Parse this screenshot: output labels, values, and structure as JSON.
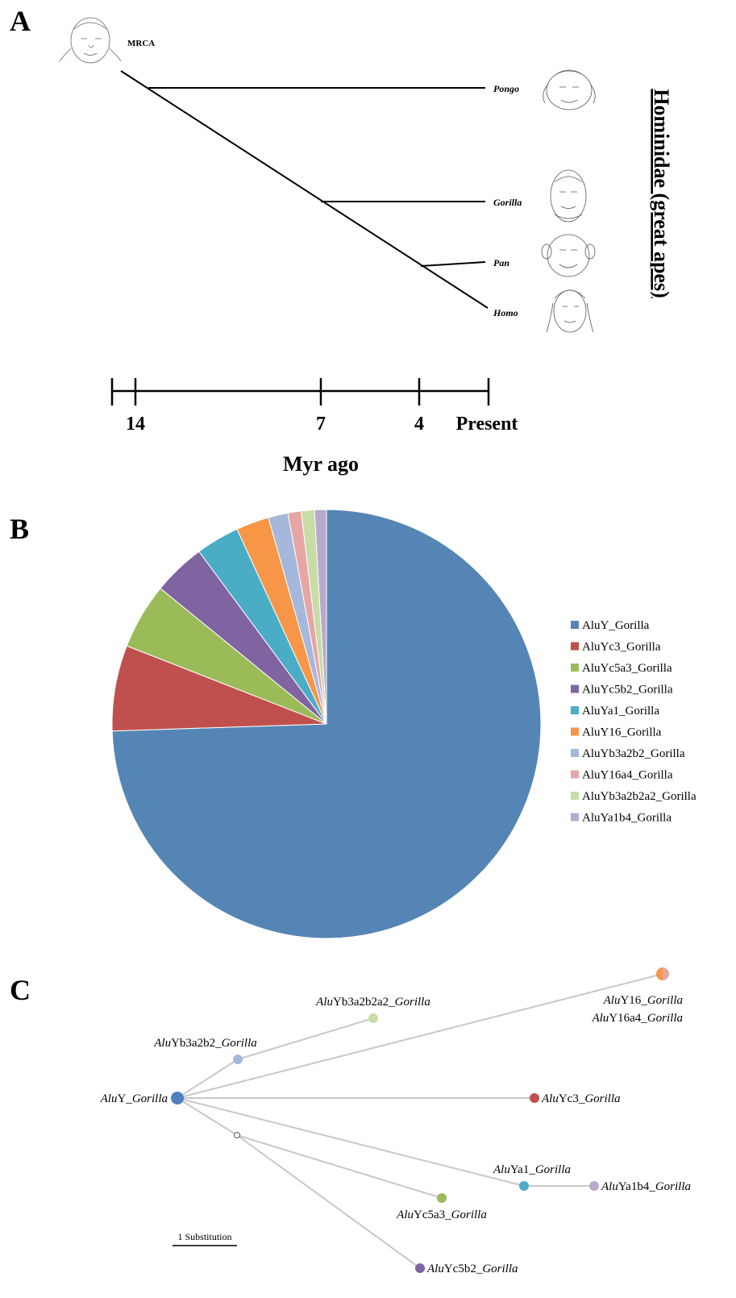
{
  "panelA": {
    "letter": "A",
    "mrca_label": "MRCA",
    "taxa": [
      "Pongo",
      "Gorilla",
      "Pan",
      "Homo"
    ],
    "family_label": "Hominidae (great apes)",
    "time_axis": {
      "ticks": [
        "14",
        "7",
        "4",
        "Present"
      ],
      "title": "Myr ago"
    },
    "icons": [
      "ancestor-portrait-icon",
      "orangutan-icon",
      "gorilla-icon",
      "chimpanzee-icon",
      "human-icon"
    ]
  },
  "panelB": {
    "letter": "B",
    "chart_data": {
      "type": "pie",
      "slices": [
        {
          "name": "AluY_Gorilla",
          "value": 75.0,
          "color": "#5585b5"
        },
        {
          "name": "AluYc3_Gorilla",
          "value": 6.5,
          "color": "#c0504d"
        },
        {
          "name": "AluYc5a3_Gorilla",
          "value": 5.0,
          "color": "#9bbb59"
        },
        {
          "name": "AluYc5b2_Gorilla",
          "value": 4.0,
          "color": "#8064a2"
        },
        {
          "name": "AluYa1_Gorilla",
          "value": 3.3,
          "color": "#4bacc6"
        },
        {
          "name": "AluY16_Gorilla",
          "value": 2.5,
          "color": "#f79646"
        },
        {
          "name": "AluYb3a2b2_Gorilla",
          "value": 1.5,
          "color": "#a5b8dc"
        },
        {
          "name": "AluY16a4_Gorilla",
          "value": 1.0,
          "color": "#e6a6a4"
        },
        {
          "name": "AluYb3a2b2a2_Gorilla",
          "value": 1.0,
          "color": "#c7dca6"
        },
        {
          "name": "AluYa1b4_Gorilla",
          "value": 0.9,
          "color": "#b8a9cc"
        }
      ],
      "legend_position": "right"
    }
  },
  "panelC": {
    "letter": "C",
    "nodes": [
      {
        "prefix": "Alu",
        "rest": "Y_",
        "genus": "Gorilla",
        "color": "#4f81bd"
      },
      {
        "prefix": "Alu",
        "rest": "Yb3a2b2_",
        "genus": "Gorilla",
        "color": "#a5b8dc"
      },
      {
        "prefix": "Alu",
        "rest": "Yb3a2b2a2_",
        "genus": "Gorilla",
        "color": "#c7dca6"
      },
      {
        "prefix": "Alu",
        "rest": "Y16_",
        "genus": "Gorilla",
        "color": "#f79646"
      },
      {
        "prefix": "Alu",
        "rest": "Y16a4_",
        "genus": "Gorilla",
        "color": "#e6a6a4"
      },
      {
        "prefix": "Alu",
        "rest": "Yc3_",
        "genus": "Gorilla",
        "color": "#c0504d"
      },
      {
        "prefix": "Alu",
        "rest": "Ya1_",
        "genus": "Gorilla",
        "color": "#4bacc6"
      },
      {
        "prefix": "Alu",
        "rest": "Ya1b4_",
        "genus": "Gorilla",
        "color": "#b8a9cc"
      },
      {
        "prefix": "Alu",
        "rest": "Yc5a3_",
        "genus": "Gorilla",
        "color": "#9bbb59"
      },
      {
        "prefix": "Alu",
        "rest": "Yc5b2_",
        "genus": "Gorilla",
        "color": "#8064a2"
      }
    ],
    "scale_label": "1 Substitution"
  }
}
